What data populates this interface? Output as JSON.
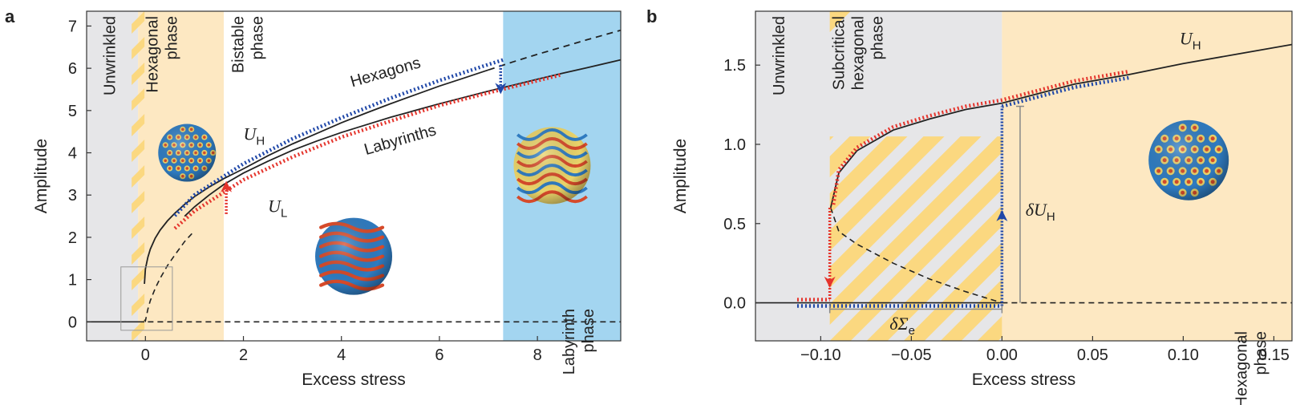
{
  "colors": {
    "grey_region": "#e6e6e8",
    "orange_region": "#fde8c2",
    "yellow_stripe": "#fbd880",
    "blue_region": "#a3d5f0",
    "red_dotted": "#e5342c",
    "blue_dotted": "#1f47a8",
    "curve": "#222222",
    "sphere_blue": "#2f7bc0",
    "sphere_red": "#d64a2a",
    "sphere_yellow": "#e9d36a"
  },
  "panels": {
    "a": {
      "letter": "a"
    },
    "b": {
      "letter": "b"
    }
  },
  "chart_data": [
    {
      "panel": "a",
      "type": "line",
      "xlabel": "Excess stress",
      "ylabel": "Amplitude",
      "xlim": [
        -1.2,
        9.7
      ],
      "ylim": [
        -0.45,
        7.35
      ],
      "xticks": [
        "0",
        "2",
        "4",
        "6",
        "8"
      ],
      "yticks": [
        "0",
        "1",
        "2",
        "3",
        "4",
        "5",
        "6",
        "7"
      ],
      "regions": [
        {
          "label": "Unwrinkled",
          "x": [
            -1.2,
            -0.15
          ]
        },
        {
          "label": "Hexagonal phase",
          "label_lines": [
            "Hexagonal",
            "phase"
          ],
          "x": [
            -0.15,
            1.6
          ]
        },
        {
          "label": "Bistable phase",
          "label_lines": [
            "Bistable",
            "phase"
          ],
          "x": [
            1.6,
            7.3
          ]
        },
        {
          "label": "Labyrinth phase",
          "label_lines": [
            "Labyrinth",
            "phase"
          ],
          "x": [
            7.3,
            9.7
          ]
        }
      ],
      "curve_labels": {
        "hexagons": "Hexagons",
        "labyrinths": "Labyrinths",
        "uh_main": "U",
        "uh_sub": "H",
        "ul_main": "U",
        "ul_sub": "L"
      },
      "series": [
        {
          "name": "Hexagons",
          "x": [
            0.6,
            1,
            2,
            3,
            4,
            5,
            6,
            7,
            7.3
          ],
          "y": [
            2.39,
            2.88,
            3.62,
            4.21,
            4.71,
            5.17,
            5.59,
            5.97,
            6.08
          ]
        },
        {
          "name": "Labyrinths",
          "x": [
            0.6,
            1,
            2,
            3,
            4,
            5,
            6,
            7,
            8.5
          ],
          "y": [
            2.27,
            2.68,
            3.42,
            3.96,
            4.43,
            4.81,
            5.18,
            5.48,
            5.91
          ]
        }
      ],
      "lines": {
        "x": [
          -0.02,
          0,
          0.05,
          0.1,
          0.2,
          0.3,
          0.45,
          0.6,
          0.8,
          1,
          1.3,
          1.6,
          2,
          2.5,
          3,
          3.5,
          4,
          4.5,
          5,
          5.5,
          6,
          6.5,
          7,
          7.5,
          8,
          8.5,
          9,
          9.7
        ],
        "uh_solid": [
          0.9,
          1.25,
          1.53,
          1.72,
          1.98,
          2.17,
          2.39,
          2.57,
          2.78,
          2.96,
          3.19,
          3.39,
          3.62,
          3.93,
          4.21,
          4.46,
          4.71,
          4.94,
          5.16,
          5.37,
          5.58,
          5.77,
          5.96,
          null,
          null,
          null,
          null,
          null
        ],
        "uh_dashed": [
          null,
          null,
          null,
          null,
          null,
          null,
          null,
          null,
          null,
          null,
          null,
          null,
          null,
          null,
          null,
          null,
          null,
          null,
          null,
          null,
          null,
          null,
          5.96,
          6.15,
          6.33,
          6.5,
          6.67,
          6.9
        ],
        "ul_solid": [
          null,
          null,
          null,
          null,
          null,
          null,
          null,
          null,
          2.5,
          2.72,
          3.0,
          3.25,
          3.52,
          3.8,
          4.06,
          4.28,
          4.48,
          4.66,
          4.84,
          5.0,
          5.16,
          5.31,
          5.46,
          5.6,
          5.74,
          5.88,
          6.01,
          6.2
        ],
        "ul_dashed_lower": [
          0.05,
          0.02,
          0.3,
          0.5,
          0.79,
          1.03,
          1.33,
          1.58,
          1.9,
          2.15,
          null,
          null,
          null,
          null,
          null,
          null,
          null,
          null,
          null,
          null,
          null,
          null,
          null,
          null,
          null,
          null,
          null,
          null
        ]
      },
      "jumps": [
        {
          "color": "red",
          "x": 1.65,
          "y_from": 2.55,
          "y_to": 3.2
        },
        {
          "color": "blue",
          "x": 7.25,
          "y_from": 6.08,
          "y_to": 5.52
        }
      ]
    },
    {
      "panel": "b",
      "type": "line",
      "xlabel": "Excess stress",
      "ylabel": "Amplitude",
      "xlim": [
        -0.136,
        0.16
      ],
      "ylim": [
        -0.24,
        1.84
      ],
      "xticks": [
        "−0.10",
        "−0.05",
        "0.00",
        "0.05",
        "0.10",
        "0.15"
      ],
      "yticks": [
        "0.0",
        "0.5",
        "1.0",
        "1.5"
      ],
      "regions": [
        {
          "label": "Unwrinkled",
          "x": [
            -0.136,
            -0.095
          ]
        },
        {
          "label": "Subcritical hexagonal phase",
          "label_lines": [
            "Subcritical",
            "hexagonal",
            "phase"
          ],
          "x": [
            -0.095,
            0.0
          ]
        },
        {
          "label": "Hexagonal phase",
          "label_lines": [
            "Hexagonal",
            "phase"
          ],
          "x": [
            0.0,
            0.16
          ]
        }
      ],
      "curve_labels": {
        "uh_main": "U",
        "uh_sub": "H",
        "dUH_main": "δU",
        "dUH_sub": "H",
        "dSe_main": "δΣ",
        "dSe_sub": "e"
      },
      "series": [
        {
          "name": "U_H",
          "x": [
            -0.0945,
            -0.09,
            -0.08,
            -0.06,
            -0.04,
            -0.02,
            0.0,
            0.02,
            0.04,
            0.07,
            0.1,
            0.13,
            0.16
          ],
          "y": [
            0.6,
            0.82,
            0.96,
            1.09,
            1.16,
            1.22,
            1.26,
            1.32,
            1.38,
            1.44,
            1.51,
            1.57,
            1.63
          ]
        },
        {
          "name": "unstable branch",
          "x": [
            -0.0945,
            -0.09,
            -0.08,
            -0.06,
            -0.04,
            -0.02,
            0.0
          ],
          "y": [
            0.6,
            0.45,
            0.37,
            0.25,
            0.15,
            0.07,
            0.0
          ]
        }
      ],
      "lines": {
        "zero_solid_x": [
          -0.136,
          0.0
        ],
        "zero_dashed_x": [
          0.0,
          0.16
        ]
      },
      "jumps": [
        {
          "color": "red",
          "x": -0.095,
          "y_from": 0.6,
          "y_to": 0.02
        },
        {
          "color": "blue",
          "x": 0.0,
          "y_from": -0.02,
          "y_to": 1.24
        }
      ],
      "delta_sigma_e": [
        -0.095,
        0.0
      ],
      "delta_U_H": 1.24
    }
  ]
}
